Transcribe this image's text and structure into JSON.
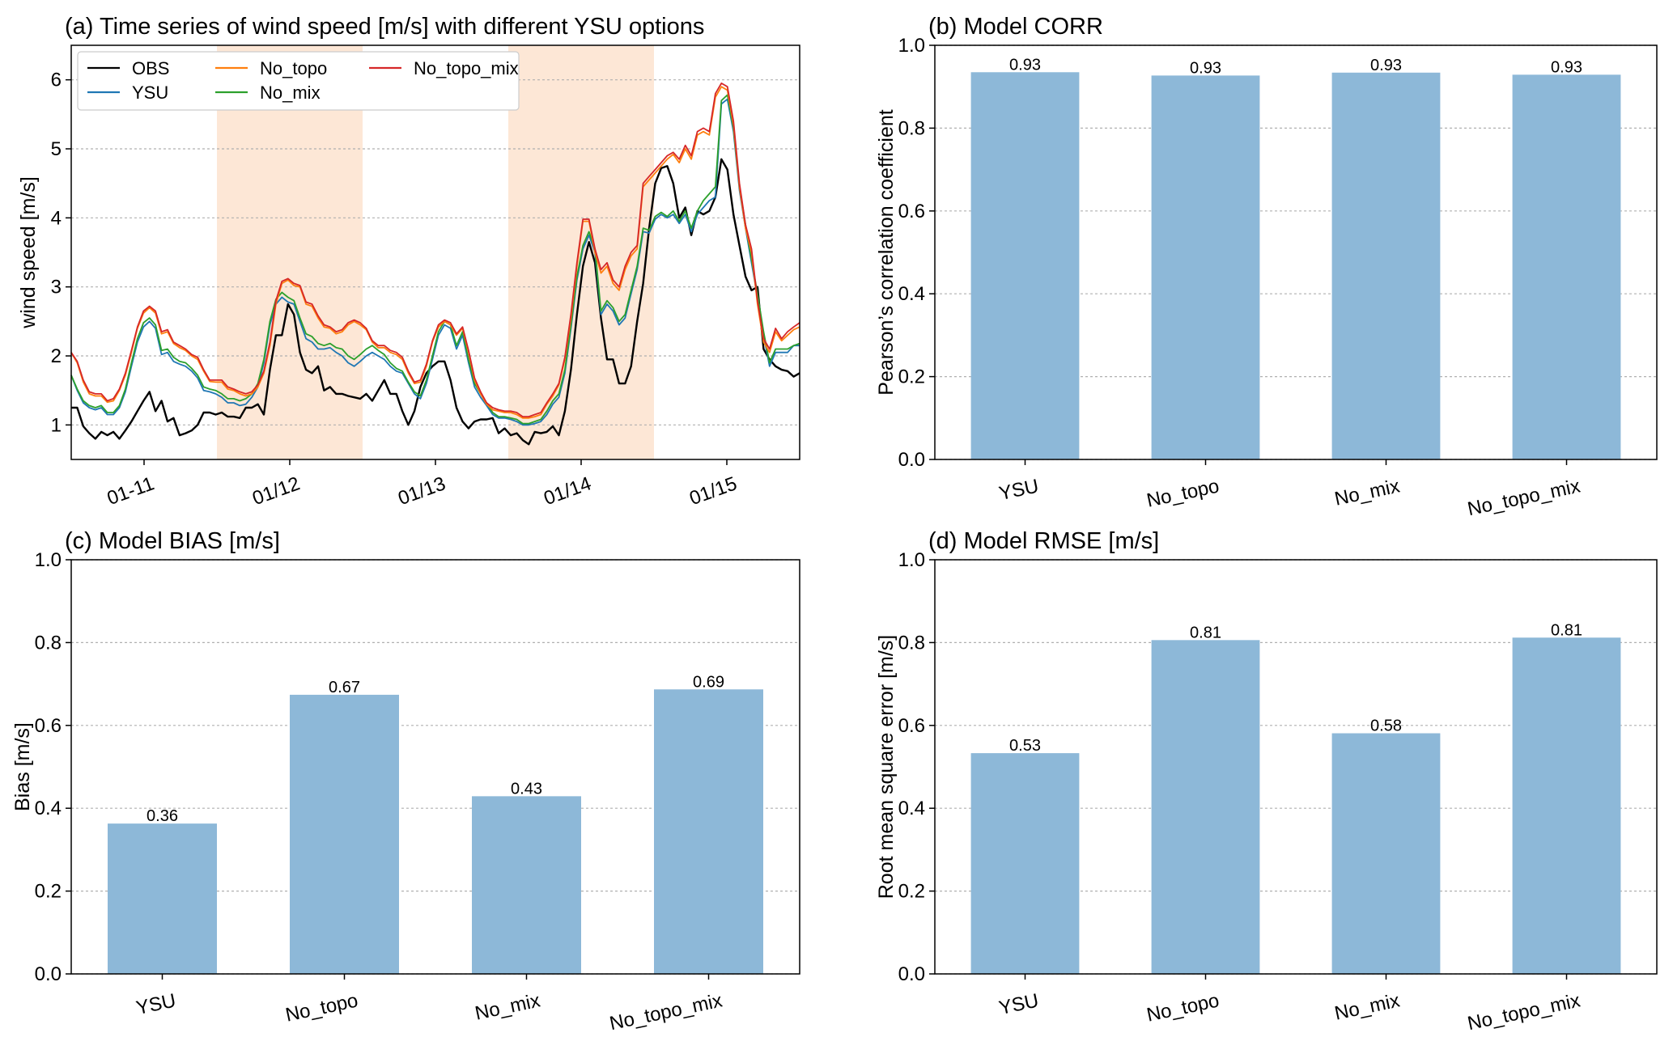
{
  "chart_data": [
    {
      "panel": "a",
      "type": "line",
      "title": "(a) Time series of wind speed [m/s] with different YSU options",
      "xlabel": "",
      "ylabel": "wind speed [m/s]",
      "ylim": [
        0.5,
        6.5
      ],
      "yticks": [
        1,
        2,
        3,
        4,
        5,
        6
      ],
      "xticks": [
        "01-11",
        "01/12",
        "01/13",
        "01/14",
        "01/15"
      ],
      "x_unit": "day",
      "x_range": [
        "01/10 12:00",
        "01/15 12:00"
      ],
      "grid": "horizontal dotted",
      "legend_position": "top-left",
      "shaded_periods": [
        [
          "01/11 12:00",
          "01/12 12:00"
        ],
        [
          "01/13 12:00",
          "01/14 12:00"
        ]
      ],
      "shade_color": "#fde7d6",
      "series": [
        {
          "name": "OBS",
          "color": "#000000",
          "values": [
            1.25,
            1.25,
            0.98,
            0.88,
            0.8,
            0.9,
            0.85,
            0.9,
            0.8,
            0.92,
            1.05,
            1.2,
            1.35,
            1.48,
            1.2,
            1.35,
            1.05,
            1.1,
            0.85,
            0.88,
            0.92,
            1.0,
            1.18,
            1.18,
            1.15,
            1.18,
            1.12,
            1.12,
            1.1,
            1.25,
            1.25,
            1.3,
            1.15,
            1.8,
            2.3,
            2.3,
            2.75,
            2.6,
            2.05,
            1.8,
            1.75,
            1.85,
            1.5,
            1.55,
            1.45,
            1.45,
            1.42,
            1.4,
            1.38,
            1.45,
            1.35,
            1.5,
            1.65,
            1.45,
            1.45,
            1.2,
            1.0,
            1.2,
            1.55,
            1.75,
            1.85,
            1.92,
            1.92,
            1.65,
            1.25,
            1.05,
            0.95,
            1.05,
            1.08,
            1.08,
            1.1,
            0.88,
            0.95,
            0.85,
            0.88,
            0.78,
            0.72,
            0.9,
            0.88,
            0.9,
            0.98,
            0.85,
            1.2,
            1.8,
            2.6,
            3.3,
            3.65,
            3.35,
            2.55,
            1.95,
            1.95,
            1.6,
            1.6,
            1.85,
            2.5,
            3.05,
            3.85,
            4.5,
            4.72,
            4.75,
            4.5,
            4.0,
            4.15,
            3.75,
            4.1,
            4.05,
            4.1,
            4.3,
            4.85,
            4.7,
            4.05,
            3.6,
            3.15,
            2.95,
            3.0,
            2.1,
            1.95,
            1.85,
            1.8,
            1.78,
            1.7,
            1.75
          ]
        },
        {
          "name": "YSU",
          "color": "#1f77b4",
          "values": [
            1.72,
            1.5,
            1.32,
            1.25,
            1.22,
            1.25,
            1.15,
            1.15,
            1.25,
            1.48,
            1.85,
            2.2,
            2.42,
            2.5,
            2.4,
            2.02,
            2.05,
            1.92,
            1.88,
            1.85,
            1.78,
            1.68,
            1.5,
            1.48,
            1.45,
            1.4,
            1.32,
            1.32,
            1.28,
            1.3,
            1.4,
            1.55,
            1.9,
            2.45,
            2.75,
            2.85,
            2.78,
            2.75,
            2.5,
            2.25,
            2.2,
            2.1,
            2.1,
            2.12,
            2.05,
            2.0,
            1.9,
            1.85,
            1.92,
            2.0,
            2.05,
            2.0,
            1.95,
            1.85,
            1.78,
            1.75,
            1.6,
            1.45,
            1.38,
            1.6,
            1.95,
            2.3,
            2.45,
            2.4,
            2.1,
            2.3,
            1.9,
            1.55,
            1.4,
            1.28,
            1.15,
            1.1,
            1.1,
            1.08,
            1.05,
            1.0,
            1.0,
            1.02,
            1.05,
            1.15,
            1.3,
            1.4,
            1.75,
            2.4,
            3.1,
            3.55,
            3.75,
            3.5,
            2.6,
            2.75,
            2.65,
            2.45,
            2.55,
            2.9,
            3.25,
            3.8,
            3.78,
            3.98,
            4.05,
            4.0,
            4.05,
            3.92,
            4.05,
            3.8,
            4.05,
            4.15,
            4.25,
            4.3,
            5.65,
            5.72,
            5.25,
            4.4,
            3.85,
            3.35,
            2.85,
            2.3,
            1.85,
            2.05,
            2.05,
            2.05,
            2.15,
            2.15
          ]
        },
        {
          "name": "No_topo",
          "color": "#ff7f0e",
          "values": [
            2.05,
            1.9,
            1.62,
            1.45,
            1.42,
            1.42,
            1.33,
            1.35,
            1.5,
            1.72,
            2.05,
            2.4,
            2.62,
            2.7,
            2.62,
            2.32,
            2.35,
            2.18,
            2.12,
            2.08,
            2.0,
            1.95,
            1.78,
            1.63,
            1.62,
            1.62,
            1.52,
            1.5,
            1.45,
            1.42,
            1.45,
            1.55,
            1.75,
            2.15,
            2.75,
            3.05,
            3.1,
            3.02,
            3.0,
            2.75,
            2.72,
            2.55,
            2.42,
            2.4,
            2.32,
            2.35,
            2.45,
            2.5,
            2.45,
            2.38,
            2.2,
            2.12,
            2.12,
            2.05,
            2.02,
            1.95,
            1.75,
            1.6,
            1.62,
            1.85,
            2.2,
            2.42,
            2.5,
            2.45,
            2.3,
            2.4,
            2.05,
            1.65,
            1.45,
            1.3,
            1.22,
            1.2,
            1.18,
            1.18,
            1.15,
            1.1,
            1.1,
            1.12,
            1.15,
            1.3,
            1.42,
            1.58,
            1.95,
            2.55,
            3.3,
            3.95,
            3.95,
            3.5,
            3.2,
            3.3,
            3.05,
            2.95,
            3.25,
            3.45,
            3.55,
            4.45,
            4.55,
            4.65,
            4.75,
            4.85,
            4.92,
            4.8,
            5.0,
            4.85,
            5.2,
            5.25,
            5.2,
            5.75,
            5.9,
            5.85,
            5.35,
            4.45,
            3.85,
            3.5,
            2.75,
            2.2,
            2.05,
            2.35,
            2.22,
            2.3,
            2.38,
            2.42
          ]
        },
        {
          "name": "No_mix",
          "color": "#2ca02c",
          "values": [
            1.72,
            1.52,
            1.35,
            1.28,
            1.25,
            1.28,
            1.18,
            1.18,
            1.28,
            1.52,
            1.9,
            2.25,
            2.48,
            2.55,
            2.45,
            2.08,
            2.1,
            1.98,
            1.92,
            1.9,
            1.82,
            1.72,
            1.55,
            1.52,
            1.5,
            1.45,
            1.38,
            1.38,
            1.35,
            1.38,
            1.45,
            1.6,
            1.95,
            2.5,
            2.82,
            2.92,
            2.85,
            2.8,
            2.55,
            2.32,
            2.28,
            2.18,
            2.15,
            2.18,
            2.12,
            2.1,
            2.0,
            1.95,
            2.02,
            2.1,
            2.15,
            2.08,
            2.02,
            1.9,
            1.82,
            1.78,
            1.62,
            1.48,
            1.42,
            1.65,
            2.0,
            2.35,
            2.5,
            2.45,
            2.15,
            2.35,
            1.95,
            1.6,
            1.45,
            1.32,
            1.18,
            1.12,
            1.12,
            1.1,
            1.08,
            1.02,
            1.02,
            1.05,
            1.08,
            1.2,
            1.35,
            1.45,
            1.8,
            2.45,
            3.15,
            3.6,
            3.8,
            3.55,
            2.65,
            2.8,
            2.7,
            2.5,
            2.6,
            2.95,
            3.3,
            3.85,
            3.82,
            4.02,
            4.08,
            4.02,
            4.1,
            3.95,
            4.1,
            3.85,
            4.1,
            4.25,
            4.35,
            4.45,
            5.7,
            5.78,
            5.3,
            4.45,
            3.9,
            3.4,
            2.9,
            2.35,
            1.9,
            2.1,
            2.1,
            2.1,
            2.15,
            2.18
          ]
        },
        {
          "name": "No_topo_mix",
          "color": "#d62728",
          "values": [
            2.05,
            1.92,
            1.65,
            1.48,
            1.45,
            1.45,
            1.35,
            1.38,
            1.52,
            1.75,
            2.08,
            2.42,
            2.65,
            2.72,
            2.65,
            2.35,
            2.38,
            2.2,
            2.15,
            2.1,
            2.02,
            1.98,
            1.8,
            1.65,
            1.65,
            1.65,
            1.55,
            1.52,
            1.48,
            1.45,
            1.48,
            1.58,
            1.78,
            2.2,
            2.8,
            3.08,
            3.12,
            3.05,
            3.02,
            2.78,
            2.75,
            2.58,
            2.45,
            2.42,
            2.35,
            2.38,
            2.48,
            2.52,
            2.48,
            2.4,
            2.22,
            2.15,
            2.15,
            2.08,
            2.05,
            1.98,
            1.78,
            1.62,
            1.65,
            1.88,
            2.22,
            2.45,
            2.52,
            2.48,
            2.32,
            2.42,
            2.08,
            1.68,
            1.48,
            1.32,
            1.25,
            1.22,
            1.2,
            1.2,
            1.18,
            1.12,
            1.12,
            1.15,
            1.18,
            1.32,
            1.45,
            1.6,
            1.98,
            2.6,
            3.35,
            3.98,
            3.98,
            3.55,
            3.25,
            3.35,
            3.1,
            3.0,
            3.3,
            3.5,
            3.6,
            4.5,
            4.6,
            4.7,
            4.8,
            4.9,
            4.95,
            4.85,
            5.05,
            4.9,
            5.25,
            5.3,
            5.25,
            5.8,
            5.95,
            5.9,
            5.4,
            4.5,
            3.9,
            3.55,
            2.8,
            2.25,
            2.1,
            2.4,
            2.25,
            2.35,
            2.42,
            2.48
          ]
        }
      ]
    },
    {
      "panel": "b",
      "type": "bar",
      "title": "(b) Model CORR",
      "xlabel": "",
      "ylabel": "Pearson’s correlation coefficient",
      "ylim": [
        0.0,
        1.0
      ],
      "yticks": [
        "0.0",
        "0.2",
        "0.4",
        "0.6",
        "0.8",
        "1.0"
      ],
      "categories": [
        "YSU",
        "No_topo",
        "No_mix",
        "No_topo_mix"
      ],
      "values": [
        0.935,
        0.927,
        0.934,
        0.929
      ],
      "data_labels": [
        "0.93",
        "0.93",
        "0.93",
        "0.93"
      ],
      "bar_color": "#8db8d8",
      "grid": "horizontal dotted"
    },
    {
      "panel": "c",
      "type": "bar",
      "title": "(c) Model BIAS [m/s]",
      "xlabel": "",
      "ylabel": "Bias [m/s]",
      "ylim": [
        0.0,
        1.0
      ],
      "yticks": [
        "0.0",
        "0.2",
        "0.4",
        "0.6",
        "0.8",
        "1.0"
      ],
      "categories": [
        "YSU",
        "No_topo",
        "No_mix",
        "No_topo_mix"
      ],
      "values": [
        0.363,
        0.674,
        0.429,
        0.687
      ],
      "data_labels": [
        "0.36",
        "0.67",
        "0.43",
        "0.69"
      ],
      "bar_color": "#8db8d8",
      "grid": "horizontal dotted"
    },
    {
      "panel": "d",
      "type": "bar",
      "title": "(d) Model RMSE [m/s]",
      "xlabel": "",
      "ylabel": "Root mean square error [m/s]",
      "ylim": [
        0.0,
        1.0
      ],
      "yticks": [
        "0.0",
        "0.2",
        "0.4",
        "0.6",
        "0.8",
        "1.0"
      ],
      "categories": [
        "YSU",
        "No_topo",
        "No_mix",
        "No_topo_mix"
      ],
      "values": [
        0.533,
        0.806,
        0.581,
        0.812
      ],
      "data_labels": [
        "0.53",
        "0.81",
        "0.58",
        "0.81"
      ],
      "bar_color": "#8db8d8",
      "grid": "horizontal dotted"
    }
  ]
}
